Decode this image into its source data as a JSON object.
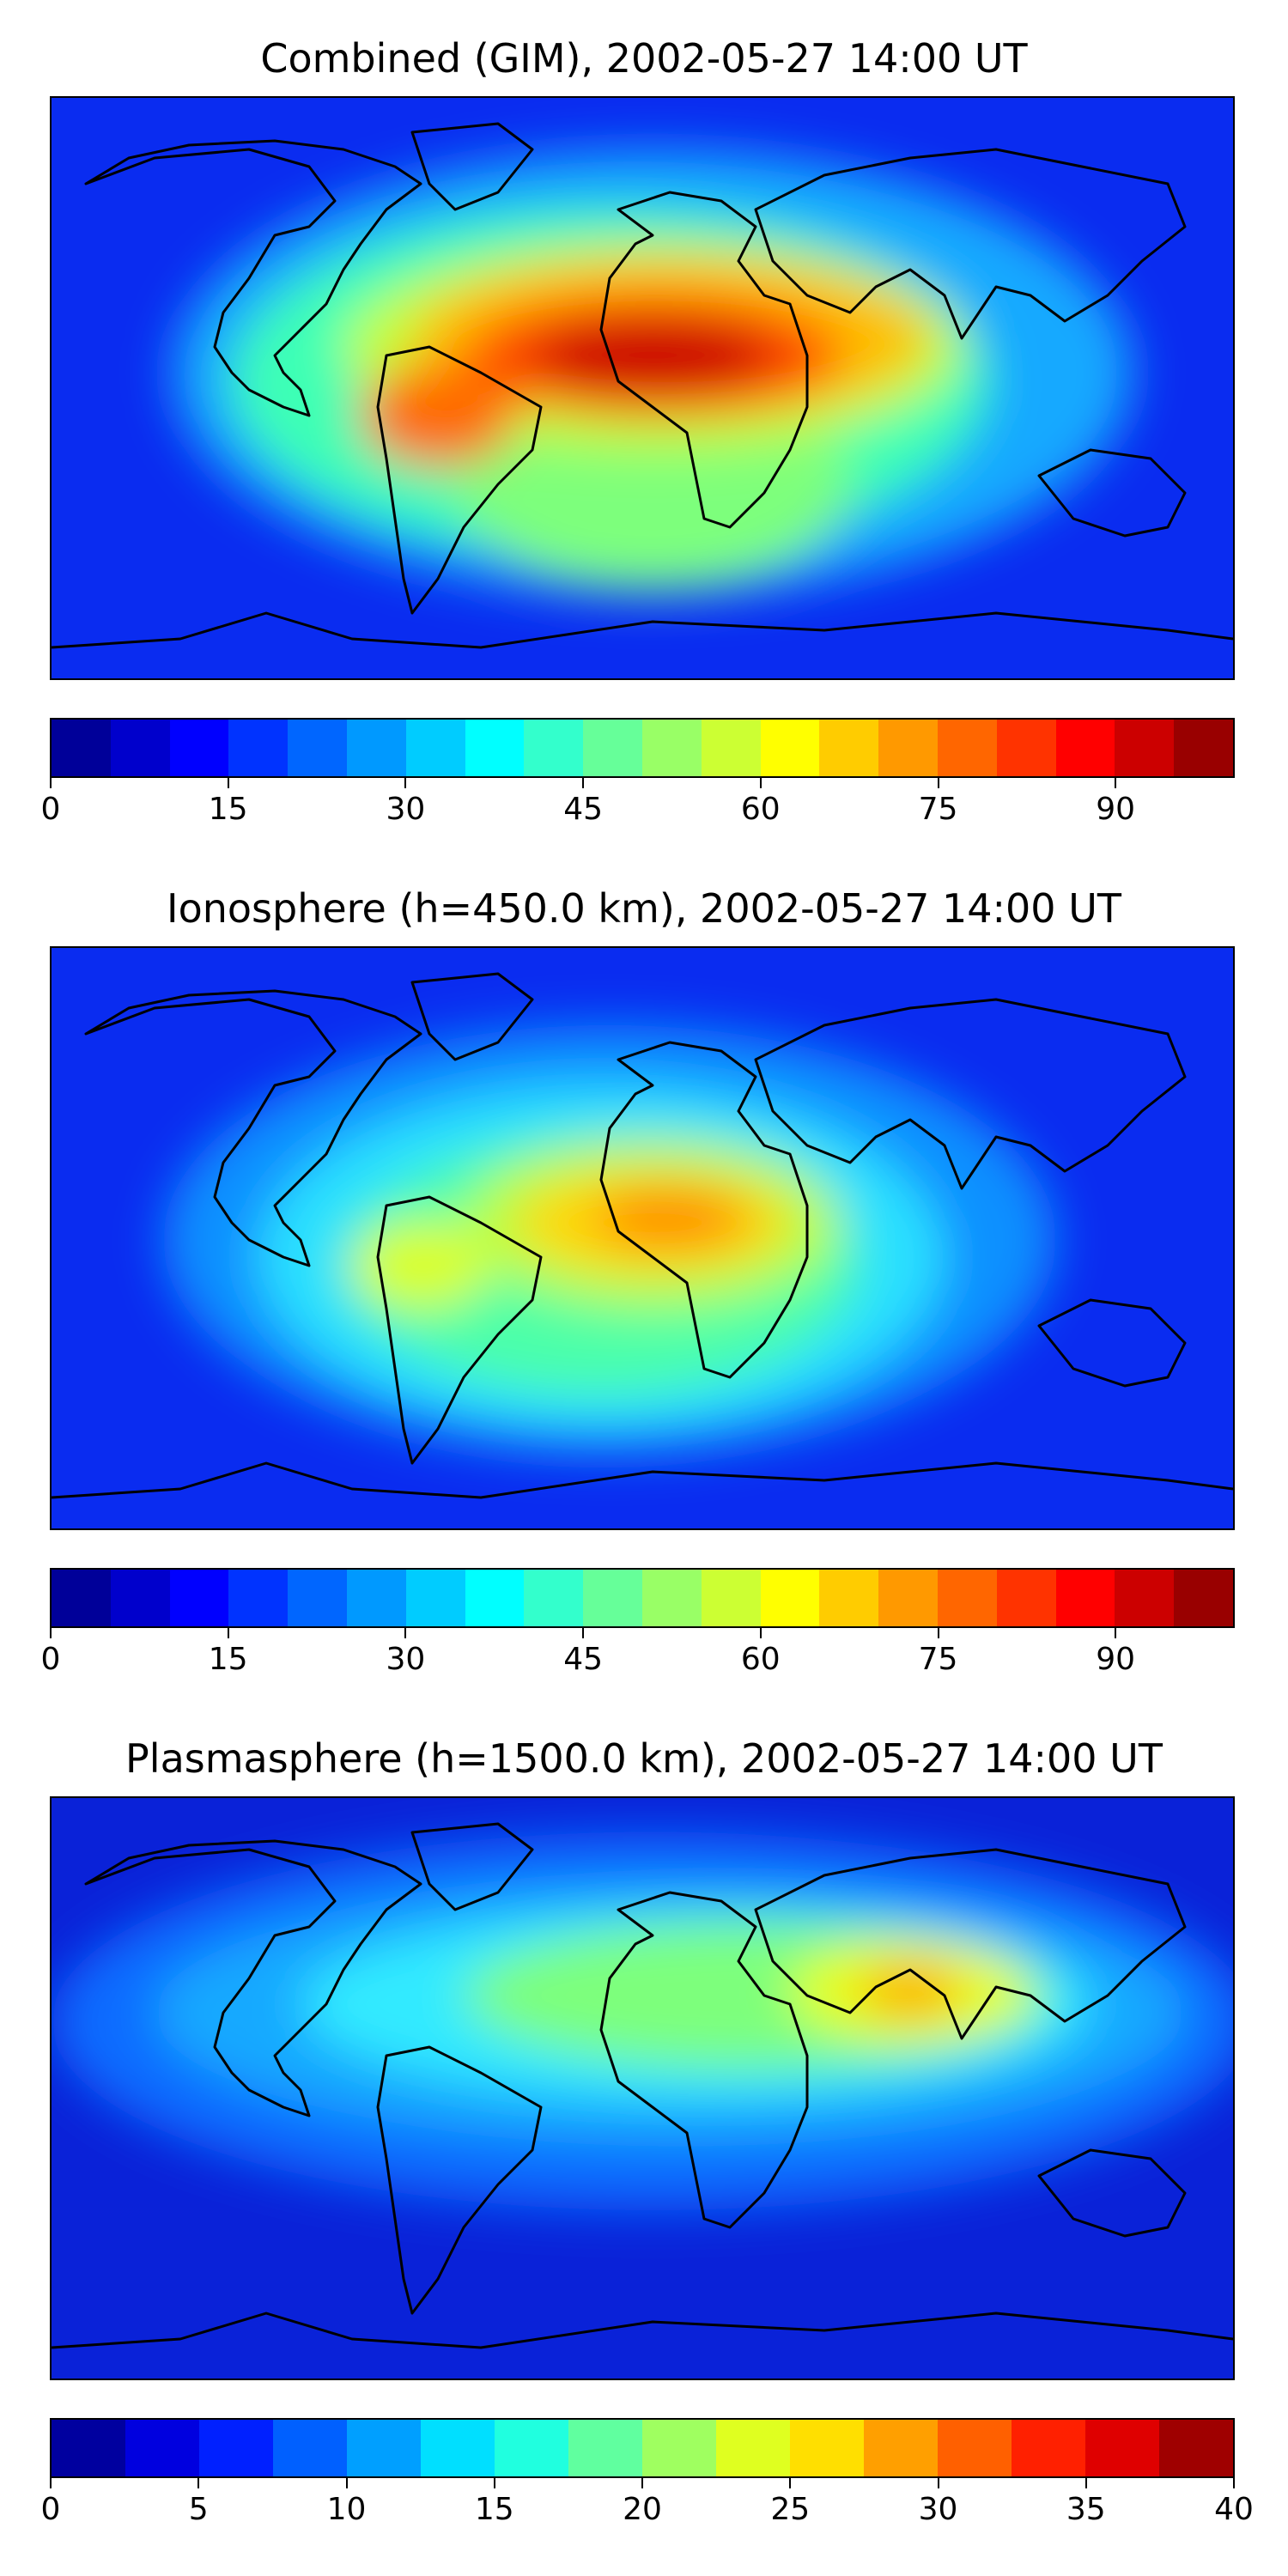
{
  "panels": [
    {
      "title": "Combined (GIM), 2002-05-27 14:00 UT",
      "colorbar": {
        "min": 0,
        "max": 100,
        "step": 5,
        "ticks": [
          "0",
          "15",
          "30",
          "45",
          "60",
          "75",
          "90"
        ],
        "tick_values": [
          0,
          15,
          30,
          45,
          60,
          75,
          90
        ]
      }
    },
    {
      "title": "Ionosphere  (h=450.0 km), 2002-05-27 14:00 UT",
      "colorbar": {
        "min": 0,
        "max": 100,
        "step": 5,
        "ticks": [
          "0",
          "15",
          "30",
          "45",
          "60",
          "75",
          "90"
        ],
        "tick_values": [
          0,
          15,
          30,
          45,
          60,
          75,
          90
        ]
      }
    },
    {
      "title": "Plasmasphere (h=1500.0 km), 2002-05-27 14:00 UT",
      "colorbar": {
        "min": 0,
        "max": 40,
        "step": 2.5,
        "ticks": [
          "0",
          "5",
          "10",
          "15",
          "20",
          "25",
          "30",
          "35",
          "40"
        ],
        "tick_values": [
          0,
          5,
          10,
          15,
          20,
          25,
          30,
          35,
          40
        ]
      }
    }
  ],
  "colormap": "jet",
  "map_background_color": "#0a2cf0",
  "coastline_color": "#000000"
}
